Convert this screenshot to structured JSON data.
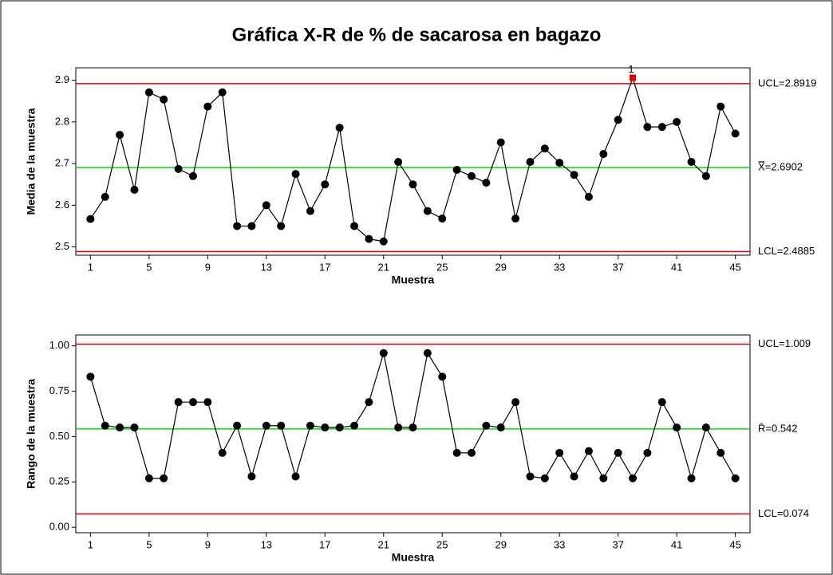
{
  "chart_data": [
    {
      "type": "line",
      "title": "Gráfica X-R de % de sacarosa en bagazo",
      "xlabel": "Muestra",
      "ylabel": "Media de la muestra",
      "x": [
        1,
        2,
        3,
        4,
        5,
        6,
        7,
        8,
        9,
        10,
        11,
        12,
        13,
        14,
        15,
        16,
        17,
        18,
        19,
        20,
        21,
        22,
        23,
        24,
        25,
        26,
        27,
        28,
        29,
        30,
        31,
        32,
        33,
        34,
        35,
        36,
        37,
        38,
        39,
        40,
        41,
        42,
        43,
        44,
        45
      ],
      "series": [
        {
          "color": "#000000",
          "values": [
            2.567,
            2.62,
            2.769,
            2.637,
            2.871,
            2.854,
            2.687,
            2.67,
            2.837,
            2.871,
            2.55,
            2.55,
            2.6,
            2.55,
            2.675,
            2.586,
            2.65,
            2.786,
            2.55,
            2.519,
            2.513,
            2.704,
            2.65,
            2.586,
            2.568,
            2.685,
            2.67,
            2.654,
            2.751,
            2.568,
            2.704,
            2.736,
            2.702,
            2.673,
            2.62,
            2.723,
            2.805,
            2.906,
            2.788,
            2.788,
            2.8,
            2.704,
            2.67,
            2.837,
            2.772
          ]
        }
      ],
      "limits": [
        {
          "value": 2.8919,
          "label": "UCL=2.8919",
          "color": "#e00000"
        },
        {
          "value": 2.6902,
          "label": "X̿=2.6902",
          "color": "#00e000"
        },
        {
          "value": 2.4885,
          "label": "LCL=2.4885",
          "color": "#e00000"
        }
      ],
      "flag_color": "#e00000",
      "annotations": [
        {
          "text": "1",
          "x": 38
        }
      ],
      "xlim": [
        0,
        46
      ],
      "xticks": [
        1,
        5,
        9,
        13,
        17,
        21,
        25,
        29,
        33,
        37,
        41,
        45
      ],
      "ylim": [
        2.48,
        2.93
      ],
      "yticks": [
        {
          "value": 2.5,
          "label": "2.5"
        },
        {
          "value": 2.6,
          "label": "2.6"
        },
        {
          "value": 2.7,
          "label": "2.7"
        },
        {
          "value": 2.8,
          "label": "2.8"
        },
        {
          "value": 2.9,
          "label": "2.9"
        }
      ]
    },
    {
      "type": "line",
      "xlabel": "Muestra",
      "ylabel": "Rango de la muestra",
      "x": [
        1,
        2,
        3,
        4,
        5,
        6,
        7,
        8,
        9,
        10,
        11,
        12,
        13,
        14,
        15,
        16,
        17,
        18,
        19,
        20,
        21,
        22,
        23,
        24,
        25,
        26,
        27,
        28,
        29,
        30,
        31,
        32,
        33,
        34,
        35,
        36,
        37,
        38,
        39,
        40,
        41,
        42,
        43,
        44,
        45
      ],
      "series": [
        {
          "color": "#000000",
          "values": [
            0.83,
            0.56,
            0.55,
            0.55,
            0.27,
            0.27,
            0.69,
            0.69,
            0.69,
            0.41,
            0.56,
            0.28,
            0.56,
            0.56,
            0.28,
            0.56,
            0.55,
            0.55,
            0.56,
            0.69,
            0.96,
            0.55,
            0.55,
            0.96,
            0.83,
            0.41,
            0.41,
            0.56,
            0.55,
            0.69,
            0.28,
            0.27,
            0.41,
            0.28,
            0.42,
            0.27,
            0.41,
            0.27,
            0.41,
            0.69,
            0.55,
            0.27,
            0.55,
            0.41,
            0.27
          ]
        }
      ],
      "limits": [
        {
          "value": 1.009,
          "label": "UCL=1.009",
          "color": "#e00000"
        },
        {
          "value": 0.542,
          "label": "R̄=0.542",
          "color": "#00e000"
        },
        {
          "value": 0.074,
          "label": "LCL=0.074",
          "color": "#e00000"
        }
      ],
      "flag_color": "#e00000",
      "xlim": [
        0,
        46
      ],
      "xticks": [
        1,
        5,
        9,
        13,
        17,
        21,
        25,
        29,
        33,
        37,
        41,
        45
      ],
      "ylim": [
        -0.03,
        1.06
      ],
      "yticks": [
        {
          "value": 0,
          "label": "0.00"
        },
        {
          "value": 0.25,
          "label": "0.25"
        },
        {
          "value": 0.5,
          "label": "0.50"
        },
        {
          "value": 0.75,
          "label": "0.75"
        },
        {
          "value": 1,
          "label": "1.00"
        }
      ]
    }
  ]
}
